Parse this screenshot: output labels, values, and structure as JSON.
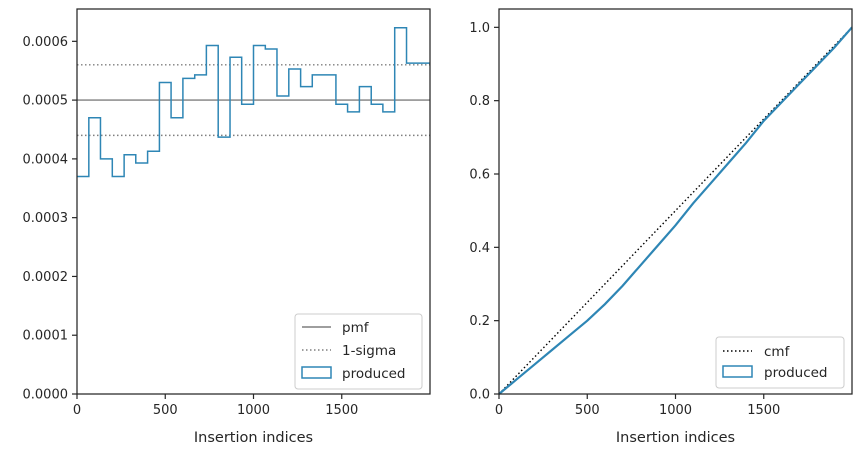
{
  "colors": {
    "produced": "#2e86b5",
    "pmf": "#7f7f7f",
    "sigma": "#7f7f7f",
    "cmf": "#000000",
    "axes": "#262626",
    "legend_border": "#cccccc"
  },
  "chart_data": [
    {
      "type": "histogram-step",
      "xlabel": "Insertion indices",
      "ylabel": "",
      "xlim": [
        0,
        2000
      ],
      "ylim": [
        0,
        0.000655
      ],
      "xticks": [
        0,
        500,
        1000,
        1500
      ],
      "xtick_labels": [
        "0",
        "500",
        "1000",
        "1500"
      ],
      "yticks": [
        0,
        0.0001,
        0.0002,
        0.0003,
        0.0004,
        0.0005,
        0.0006
      ],
      "ytick_labels": [
        "0.0000",
        "0.0001",
        "0.0002",
        "0.0003",
        "0.0004",
        "0.0005",
        "0.0006"
      ],
      "bin_edges": [
        0,
        67,
        133,
        200,
        267,
        333,
        400,
        467,
        533,
        600,
        667,
        733,
        800,
        867,
        933,
        1000,
        1067,
        1133,
        1200,
        1267,
        1333,
        1400,
        1467,
        1533,
        1600,
        1667,
        1733,
        1800,
        1867,
        1933,
        2000
      ],
      "series": [
        {
          "name": "produced",
          "kind": "step",
          "values": [
            0.00037,
            0.00047,
            0.0004,
            0.00037,
            0.000407,
            0.000393,
            0.000413,
            0.00053,
            0.00047,
            0.000537,
            0.000543,
            0.000593,
            0.000437,
            0.000573,
            0.000493,
            0.000593,
            0.000587,
            0.000507,
            0.000553,
            0.000523,
            0.000543,
            0.000543,
            0.000493,
            0.00048,
            0.000523,
            0.000493,
            0.00048,
            0.000623,
            0.000563,
            0.000563
          ]
        },
        {
          "name": "pmf",
          "kind": "hline",
          "value": 0.0005
        },
        {
          "name": "1-sigma",
          "kind": "hline-pair",
          "values": [
            0.00044,
            0.00056
          ]
        }
      ],
      "legend": {
        "placement": "lower-right",
        "entries": [
          {
            "label": "pmf",
            "style": "solid-line"
          },
          {
            "label": "1-sigma",
            "style": "dotted-line"
          },
          {
            "label": "produced",
            "style": "box"
          }
        ]
      }
    },
    {
      "type": "line",
      "xlabel": "Insertion indices",
      "ylabel": "",
      "xlim": [
        0,
        2000
      ],
      "ylim": [
        0,
        1.05
      ],
      "xticks": [
        0,
        500,
        1000,
        1500
      ],
      "xtick_labels": [
        "0",
        "500",
        "1000",
        "1500"
      ],
      "yticks": [
        0,
        0.2,
        0.4,
        0.6,
        0.8,
        1.0
      ],
      "ytick_labels": [
        "0.0",
        "0.2",
        "0.4",
        "0.6",
        "0.8",
        "1.0"
      ],
      "series": [
        {
          "name": "cmf",
          "kind": "dotted-line",
          "x": [
            0,
            2000
          ],
          "y": [
            0,
            1.0
          ]
        },
        {
          "name": "produced",
          "kind": "step-line",
          "x": [
            0,
            100,
            200,
            300,
            400,
            500,
            600,
            700,
            800,
            900,
            1000,
            1100,
            1200,
            1300,
            1400,
            1500,
            1600,
            1700,
            1800,
            1900,
            2000
          ],
          "y": [
            0,
            0.04,
            0.08,
            0.12,
            0.16,
            0.2,
            0.245,
            0.295,
            0.35,
            0.405,
            0.46,
            0.52,
            0.575,
            0.63,
            0.685,
            0.745,
            0.795,
            0.845,
            0.895,
            0.945,
            1.0
          ]
        }
      ],
      "legend": {
        "placement": "lower-right",
        "entries": [
          {
            "label": "cmf",
            "style": "dotted-line"
          },
          {
            "label": "produced",
            "style": "box"
          }
        ]
      }
    }
  ]
}
